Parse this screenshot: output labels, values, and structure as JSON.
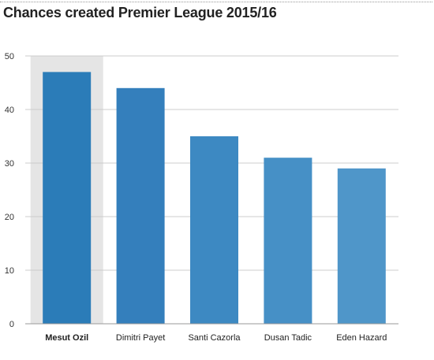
{
  "chart_data": {
    "type": "bar",
    "title": "Chances created Premier League 2015/16",
    "xlabel": "",
    "ylabel": "",
    "categories": [
      "Mesut Ozil",
      "Dimitri Payet",
      "Santi Cazorla",
      "Dusan Tadic",
      "Eden Hazard"
    ],
    "values": [
      47,
      44,
      35,
      31,
      29
    ],
    "ylim": [
      0,
      50
    ],
    "yticks": [
      0,
      10,
      20,
      30,
      40,
      50
    ],
    "grid": true,
    "highlighted_category": "Mesut Ozil",
    "colors": {
      "bars": [
        "#2b7cb8",
        "#347fbc",
        "#3d89c2",
        "#4690c6",
        "#4f96c9"
      ],
      "highlight_background": "#e5e5e5",
      "grid": "#cccccc",
      "axis": "#999999"
    }
  }
}
